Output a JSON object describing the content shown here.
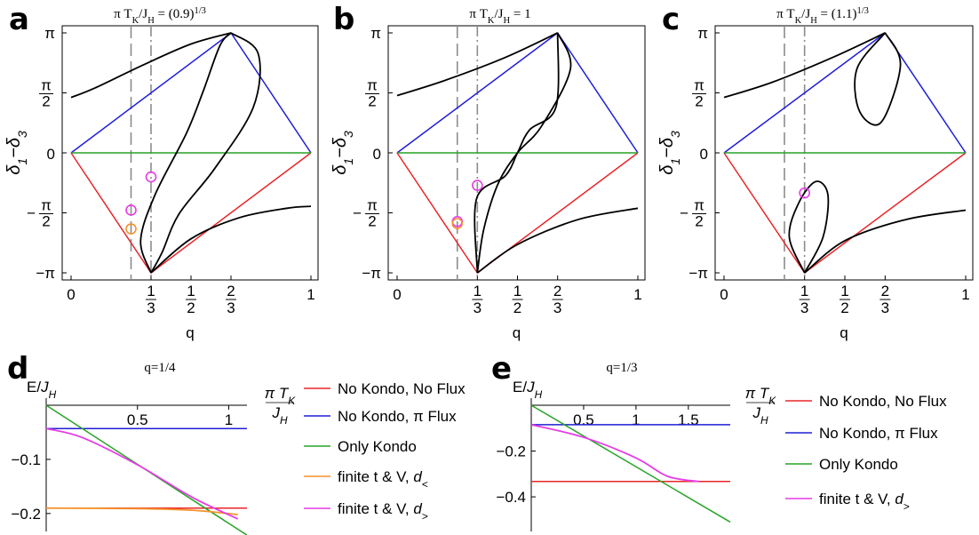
{
  "colors": {
    "red": "#e8262a",
    "blue": "#1f1fd6",
    "green": "#27a327",
    "orange": "#f5922b",
    "magenta": "#e63ce6",
    "black": "#000000",
    "gray": "#8c8c8c"
  },
  "chart_data": [
    {
      "panel": "a",
      "type": "line",
      "title": "π T_K/J_H = (0.9)^1/3",
      "xlabel": "q",
      "ylabel": "δ1−δ3",
      "xlim": [
        0,
        1
      ],
      "ylim": [
        -3.1416,
        3.1416
      ],
      "xticks": [
        "0",
        "1/3",
        "1/2",
        "2/3",
        "1"
      ],
      "yticks": [
        "−π",
        "−π/2",
        "0",
        "π/2",
        "π"
      ],
      "vlines": {
        "dashed": 0.25,
        "dashdot": 0.3333
      },
      "series": [
        {
          "color": "red",
          "points": [
            [
              0,
              0
            ],
            [
              0.3333,
              -3.1416
            ],
            [
              1,
              0
            ]
          ]
        },
        {
          "color": "blue",
          "points": [
            [
              0,
              0
            ],
            [
              0.6667,
              3.1416
            ],
            [
              1,
              0
            ]
          ]
        },
        {
          "color": "green",
          "points": [
            [
              0,
              0
            ],
            [
              1,
              0
            ]
          ]
        },
        {
          "color": "black",
          "points": [
            [
              0,
              1.45
            ],
            [
              0.1,
              1.7
            ],
            [
              0.3,
              2.3
            ],
            [
              0.5,
              2.85
            ],
            [
              0.6667,
              3.1416
            ]
          ]
        },
        {
          "color": "black",
          "points": [
            [
              0.3333,
              -3.1416
            ],
            [
              0.5,
              -2.25
            ],
            [
              0.7,
              -1.7
            ],
            [
              0.9,
              -1.45
            ],
            [
              1,
              -1.4
            ]
          ]
        },
        {
          "color": "black",
          "points": [
            [
              0.3333,
              -3.1416
            ],
            [
              0.29,
              -2.3
            ],
            [
              0.35,
              -1.1
            ],
            [
              0.48,
              0.5
            ],
            [
              0.55,
              1.6
            ],
            [
              0.62,
              2.8
            ],
            [
              0.6667,
              3.1416
            ]
          ]
        },
        {
          "color": "black",
          "points": [
            [
              0.6667,
              3.1416
            ],
            [
              0.78,
              2.6
            ],
            [
              0.76,
              1.2
            ],
            [
              0.6,
              -0.4
            ],
            [
              0.45,
              -1.6
            ],
            [
              0.38,
              -2.6
            ],
            [
              0.3333,
              -3.1416
            ]
          ]
        }
      ],
      "markers": [
        {
          "color": "magenta",
          "q": 0.3333,
          "y": -0.63
        },
        {
          "color": "magenta",
          "q": 0.25,
          "y": -1.5
        },
        {
          "color": "orange",
          "q": 0.25,
          "y": -1.99
        }
      ]
    },
    {
      "panel": "b",
      "type": "line",
      "title": "π T_K/J_H = 1",
      "xlabel": "",
      "ylabel": "δ1−δ3",
      "xlim": [
        0,
        1
      ],
      "ylim": [
        -3.1416,
        3.1416
      ],
      "xticks": [
        "0",
        "1/3",
        "1/2",
        "2/3",
        "1"
      ],
      "yticks": [
        "−π",
        "−π/2",
        "0",
        "π/2",
        "π"
      ],
      "vlines": {
        "dashed": 0.25,
        "dashdot": 0.3333
      },
      "series": [
        {
          "color": "red",
          "points": [
            [
              0,
              0
            ],
            [
              0.3333,
              -3.1416
            ],
            [
              1,
              0
            ]
          ]
        },
        {
          "color": "blue",
          "points": [
            [
              0,
              0
            ],
            [
              0.6667,
              3.1416
            ],
            [
              1,
              0
            ]
          ]
        },
        {
          "color": "green",
          "points": [
            [
              0,
              0
            ],
            [
              1,
              0
            ]
          ]
        },
        {
          "color": "black",
          "points": [
            [
              0,
              1.5
            ],
            [
              0.2,
              1.9
            ],
            [
              0.45,
              2.5
            ],
            [
              0.6667,
              3.1416
            ]
          ]
        },
        {
          "color": "black",
          "points": [
            [
              0.3333,
              -3.1416
            ],
            [
              0.5,
              -2.4
            ],
            [
              0.75,
              -1.75
            ],
            [
              1,
              -1.45
            ]
          ]
        },
        {
          "color": "black",
          "points": [
            [
              0.3333,
              -3.1416
            ],
            [
              0.33,
              -1.2
            ],
            [
              0.45,
              -0.6
            ],
            [
              0.5,
              0
            ],
            [
              0.55,
              0.6
            ],
            [
              0.66,
              1.2
            ],
            [
              0.6667,
              3.1416
            ]
          ]
        },
        {
          "color": "black",
          "points": [
            [
              0.6667,
              3.1416
            ],
            [
              0.72,
              2.2
            ],
            [
              0.6,
              0.7
            ],
            [
              0.5,
              0
            ],
            [
              0.42,
              -0.8
            ],
            [
              0.36,
              -2.0
            ],
            [
              0.3333,
              -3.1416
            ]
          ]
        }
      ],
      "markers": [
        {
          "color": "magenta",
          "q": 0.3333,
          "y": -0.85
        },
        {
          "color": "magenta",
          "q": 0.25,
          "y": -1.8
        },
        {
          "color": "orange",
          "q": 0.25,
          "y": -1.85
        }
      ]
    },
    {
      "panel": "c",
      "type": "line",
      "title": "π T_K/J_H = (1.1)^1/3",
      "xlabel": "q",
      "ylabel": "δ1−δ3",
      "xlim": [
        0,
        1
      ],
      "ylim": [
        -3.1416,
        3.1416
      ],
      "xticks": [
        "0",
        "1/3",
        "1/2",
        "2/3",
        "1"
      ],
      "yticks": [
        "−π",
        "−π/2",
        "0",
        "π/2",
        "π"
      ],
      "vlines": {
        "dashed": 0.25,
        "dashdot": 0.3333
      },
      "series": [
        {
          "color": "red",
          "points": [
            [
              0,
              0
            ],
            [
              0.3333,
              -3.1416
            ],
            [
              1,
              0
            ]
          ]
        },
        {
          "color": "blue",
          "points": [
            [
              0,
              0
            ],
            [
              0.6667,
              3.1416
            ],
            [
              1,
              0
            ]
          ]
        },
        {
          "color": "green",
          "points": [
            [
              0,
              0
            ],
            [
              1,
              0
            ]
          ]
        },
        {
          "color": "black",
          "points": [
            [
              0,
              1.45
            ],
            [
              0.2,
              1.85
            ],
            [
              0.45,
              2.5
            ],
            [
              0.6667,
              3.1416
            ]
          ]
        },
        {
          "color": "black",
          "points": [
            [
              0.3333,
              -3.1416
            ],
            [
              0.5,
              -2.3
            ],
            [
              0.75,
              -1.75
            ],
            [
              1,
              -1.5
            ]
          ]
        },
        {
          "color": "black",
          "points": [
            [
              0.3333,
              -3.1416
            ],
            [
              0.27,
              -2.2
            ],
            [
              0.31,
              -1.3
            ],
            [
              0.38,
              -0.75
            ],
            [
              0.43,
              -1.1
            ],
            [
              0.41,
              -2.2
            ],
            [
              0.3333,
              -3.1416
            ]
          ]
        },
        {
          "color": "black",
          "points": [
            [
              0.6667,
              3.1416
            ],
            [
              0.73,
              2.3
            ],
            [
              0.65,
              0.8
            ],
            [
              0.56,
              1.1
            ],
            [
              0.55,
              2.2
            ],
            [
              0.6667,
              3.1416
            ]
          ]
        }
      ],
      "markers": [
        {
          "color": "magenta",
          "q": 0.3333,
          "y": -1.05
        }
      ]
    },
    {
      "panel": "d",
      "type": "line",
      "title": "q=1/4",
      "xlabel": "π T_K / J_H",
      "ylabel": "E/J_H",
      "xlim": [
        0,
        1.1
      ],
      "ylim": [
        -0.22,
        0.02
      ],
      "xticks": [
        "0.5",
        "1"
      ],
      "yticks": [
        "−0.1",
        "−0.2"
      ],
      "series": [
        {
          "name": "No Kondo, No Flux",
          "color": "red",
          "points": [
            [
              0,
              -0.19
            ],
            [
              1.1,
              -0.19
            ]
          ]
        },
        {
          "name": "No Kondo, π Flux",
          "color": "blue",
          "points": [
            [
              0,
              -0.043
            ],
            [
              1.1,
              -0.043
            ]
          ]
        },
        {
          "name": "Only Kondo",
          "color": "green",
          "points": [
            [
              0,
              0
            ],
            [
              1.1,
              -0.24
            ]
          ]
        },
        {
          "name": "finite t & V, d<",
          "color": "orange",
          "points": [
            [
              0,
              -0.19
            ],
            [
              0.5,
              -0.191
            ],
            [
              0.8,
              -0.194
            ],
            [
              1.05,
              -0.202
            ]
          ]
        },
        {
          "name": "finite t & V, d>",
          "color": "magenta",
          "points": [
            [
              0,
              -0.043
            ],
            [
              0.2,
              -0.06
            ],
            [
              0.5,
              -0.11
            ],
            [
              0.8,
              -0.17
            ],
            [
              1.05,
              -0.21
            ]
          ]
        }
      ]
    },
    {
      "panel": "e",
      "type": "line",
      "title": "q=1/3",
      "xlabel": "π T_K / J_H",
      "ylabel": "E/J_H",
      "xlim": [
        0,
        1.9
      ],
      "ylim": [
        -0.52,
        0.06
      ],
      "xticks": [
        "0.5",
        "1",
        "1.5"
      ],
      "yticks": [
        "−0.2",
        "−0.4"
      ],
      "series": [
        {
          "name": "No Kondo, No Flux",
          "color": "red",
          "points": [
            [
              0,
              -0.333
            ],
            [
              1.9,
              -0.333
            ]
          ]
        },
        {
          "name": "No Kondo, π Flux",
          "color": "blue",
          "points": [
            [
              0,
              -0.085
            ],
            [
              1.9,
              -0.085
            ]
          ]
        },
        {
          "name": "Only Kondo",
          "color": "green",
          "points": [
            [
              0,
              0
            ],
            [
              1.9,
              -0.51
            ]
          ]
        },
        {
          "name": "finite t & V, d>",
          "color": "magenta",
          "points": [
            [
              0,
              -0.085
            ],
            [
              0.5,
              -0.14
            ],
            [
              1.0,
              -0.23
            ],
            [
              1.3,
              -0.31
            ],
            [
              1.6,
              -0.333
            ]
          ]
        }
      ]
    }
  ],
  "labels": {
    "a": "a",
    "b": "b",
    "c": "c",
    "d": "d",
    "e": "e",
    "pi": "π",
    "mpi": "−π",
    "zero": "0",
    "one": "1",
    "half_pi": "π",
    "two": "2",
    "q": "q",
    "frac13_top": "1",
    "frac13_bot": "3",
    "frac12_top": "1",
    "frac12_bot": "2",
    "frac23_top": "2",
    "frac23_bot": "3",
    "title_a_pre": "π T",
    "title_a_sub": "K",
    "title_a_mid": "/J",
    "title_a_sub2": "H",
    "title_a_post": " = (0.9)",
    "title_a_sup": "1/3",
    "title_b_post": " = 1",
    "title_c_post": " = (1.1)",
    "title_c_sup": "1/3",
    "ylab_d": "δ",
    "ylab_d1": "1",
    "ylab_dash": "−δ",
    "ylab_d3": "3",
    "qd": "q=1/4",
    "qe": "q=1/3",
    "eaxis": "E/",
    "eaxis_sub": "J",
    "eaxis_subH": "H",
    "xaxis_top": "π T",
    "xaxis_topsub": "K",
    "xaxis_bot": "J",
    "xaxis_botsub": "H",
    "tick_d_05": "0.5",
    "tick_d_1": "1",
    "tick_d_m01": "−0.1",
    "tick_d_m02": "−0.2",
    "tick_e_05": "0.5",
    "tick_e_1": "1",
    "tick_e_15": "1.5",
    "tick_e_m02": "−0.2",
    "tick_e_m04": "−0.4",
    "leg1": "No Kondo, No Flux",
    "leg2": "No Kondo, π Flux",
    "leg3": "Only Kondo",
    "leg4": "finite t & V, ",
    "leg4d": "d",
    "leg4s": "<",
    "leg5d": "d",
    "leg5s": ">"
  }
}
